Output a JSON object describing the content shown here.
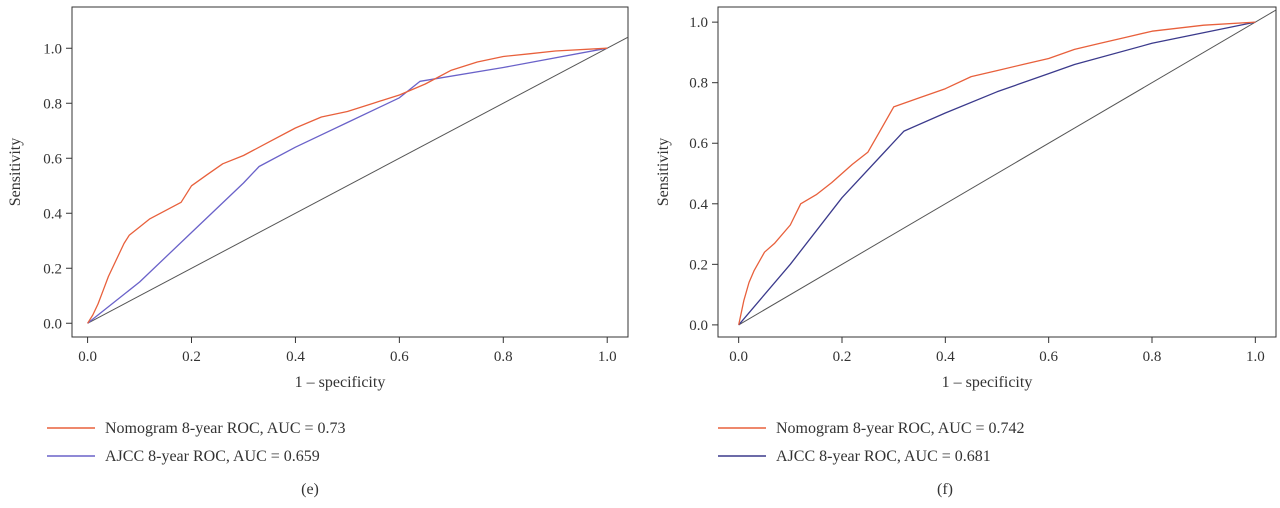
{
  "chart_data": [
    {
      "type": "line",
      "panel_label": "(e)",
      "xlabel": "1 – specificity",
      "ylabel": "Sensitivity",
      "xlim": [
        -0.03,
        1.04
      ],
      "ylim": [
        -0.05,
        1.15
      ],
      "xticks": [
        "0.0",
        "0.2",
        "0.4",
        "0.6",
        "0.8",
        "1.0"
      ],
      "yticks": [
        "0.0",
        "0.2",
        "0.4",
        "0.6",
        "0.8",
        "1.0"
      ],
      "grid": false,
      "legend_position": "bottom-left",
      "series": [
        {
          "name": "Nomogram 8-year ROC, AUC = 0.73",
          "color": "#e8603c",
          "points": [
            [
              0,
              0
            ],
            [
              0.01,
              0.03
            ],
            [
              0.02,
              0.07
            ],
            [
              0.03,
              0.12
            ],
            [
              0.04,
              0.17
            ],
            [
              0.05,
              0.21
            ],
            [
              0.06,
              0.25
            ],
            [
              0.07,
              0.29
            ],
            [
              0.08,
              0.32
            ],
            [
              0.1,
              0.35
            ],
            [
              0.12,
              0.38
            ],
            [
              0.14,
              0.4
            ],
            [
              0.16,
              0.42
            ],
            [
              0.18,
              0.44
            ],
            [
              0.2,
              0.5
            ],
            [
              0.23,
              0.54
            ],
            [
              0.26,
              0.58
            ],
            [
              0.3,
              0.61
            ],
            [
              0.35,
              0.66
            ],
            [
              0.4,
              0.71
            ],
            [
              0.45,
              0.75
            ],
            [
              0.5,
              0.77
            ],
            [
              0.55,
              0.8
            ],
            [
              0.6,
              0.83
            ],
            [
              0.65,
              0.87
            ],
            [
              0.7,
              0.92
            ],
            [
              0.75,
              0.95
            ],
            [
              0.8,
              0.97
            ],
            [
              0.85,
              0.98
            ],
            [
              0.9,
              0.99
            ],
            [
              1.0,
              1.0
            ]
          ]
        },
        {
          "name": "AJCC 8-year ROC, AUC = 0.659",
          "color": "#6a62c9",
          "points": [
            [
              0,
              0
            ],
            [
              0.1,
              0.15
            ],
            [
              0.2,
              0.33
            ],
            [
              0.3,
              0.51
            ],
            [
              0.33,
              0.57
            ],
            [
              0.4,
              0.64
            ],
            [
              0.5,
              0.73
            ],
            [
              0.6,
              0.82
            ],
            [
              0.64,
              0.88
            ],
            [
              0.8,
              0.93
            ],
            [
              1.0,
              1.0
            ]
          ]
        },
        {
          "name": "",
          "color": "#555555",
          "points": [
            [
              0,
              0
            ],
            [
              1.04,
              1.04
            ]
          ]
        }
      ]
    },
    {
      "type": "line",
      "panel_label": "(f)",
      "xlabel": "1 – specificity",
      "ylabel": "Sensitivity",
      "xlim": [
        -0.04,
        1.04
      ],
      "ylim": [
        -0.04,
        1.05
      ],
      "xticks": [
        "0.0",
        "0.2",
        "0.4",
        "0.6",
        "0.8",
        "1.0"
      ],
      "yticks": [
        "0.0",
        "0.2",
        "0.4",
        "0.6",
        "0.8",
        "1.0"
      ],
      "grid": false,
      "legend_position": "bottom-left",
      "series": [
        {
          "name": "Nomogram 8-year ROC, AUC = 0.742",
          "color": "#e8603c",
          "points": [
            [
              0,
              0
            ],
            [
              0.01,
              0.08
            ],
            [
              0.02,
              0.14
            ],
            [
              0.03,
              0.18
            ],
            [
              0.05,
              0.24
            ],
            [
              0.07,
              0.27
            ],
            [
              0.1,
              0.33
            ],
            [
              0.12,
              0.4
            ],
            [
              0.15,
              0.43
            ],
            [
              0.18,
              0.47
            ],
            [
              0.22,
              0.53
            ],
            [
              0.25,
              0.57
            ],
            [
              0.27,
              0.63
            ],
            [
              0.3,
              0.72
            ],
            [
              0.35,
              0.75
            ],
            [
              0.4,
              0.78
            ],
            [
              0.45,
              0.82
            ],
            [
              0.5,
              0.84
            ],
            [
              0.55,
              0.86
            ],
            [
              0.6,
              0.88
            ],
            [
              0.65,
              0.91
            ],
            [
              0.7,
              0.93
            ],
            [
              0.75,
              0.95
            ],
            [
              0.8,
              0.97
            ],
            [
              0.85,
              0.98
            ],
            [
              0.9,
              0.99
            ],
            [
              1.0,
              1.0
            ]
          ]
        },
        {
          "name": "AJCC 8-year ROC, AUC = 0.681",
          "color": "#3b3a8c",
          "points": [
            [
              0,
              0
            ],
            [
              0.1,
              0.2
            ],
            [
              0.2,
              0.42
            ],
            [
              0.32,
              0.64
            ],
            [
              0.4,
              0.7
            ],
            [
              0.5,
              0.77
            ],
            [
              0.6,
              0.83
            ],
            [
              0.65,
              0.86
            ],
            [
              0.8,
              0.93
            ],
            [
              1.0,
              1.0
            ]
          ]
        },
        {
          "name": "",
          "color": "#555555",
          "points": [
            [
              0,
              0
            ],
            [
              1.04,
              1.04
            ]
          ]
        }
      ]
    }
  ]
}
